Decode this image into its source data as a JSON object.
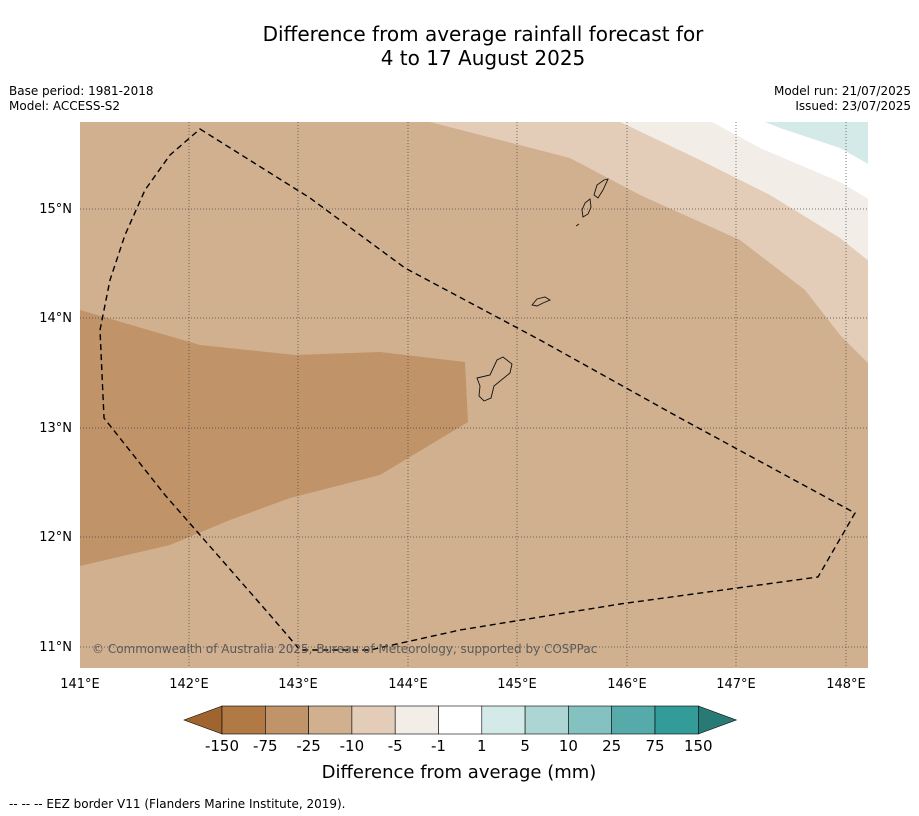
{
  "title": {
    "line1": "Difference from average rainfall forecast for",
    "line2": "4 to 17 August 2025"
  },
  "meta_left": {
    "base_period": "Base period: 1981-2018",
    "model": "Model: ACCESS-S2"
  },
  "meta_right": {
    "model_run": "Model run: 21/07/2025",
    "issued": "Issued: 23/07/2025"
  },
  "map": {
    "lon_labels": [
      "141°E",
      "142°E",
      "143°E",
      "144°E",
      "145°E",
      "146°E",
      "147°E",
      "148°E"
    ],
    "lat_labels": [
      "15°N",
      "14°N",
      "13°N",
      "12°N",
      "11°N"
    ],
    "copyright": "© Commonwealth of Australia 2025, Bureau of Meteorology, supported by COSPPac",
    "extent": {
      "lon": [
        141.0,
        148.2
      ],
      "lat": [
        10.8,
        15.8
      ]
    }
  },
  "colorbar": {
    "labels": [
      "-150",
      "-75",
      "-25",
      "-10",
      "-5",
      "-1",
      "1",
      "5",
      "10",
      "25",
      "75",
      "150"
    ],
    "colors": [
      "#a0652f",
      "#b17a44",
      "#c09368",
      "#d1b090",
      "#e3cdb9",
      "#f2ede7",
      "#ffffff",
      "#d4eae9",
      "#acd5d3",
      "#84c1c1",
      "#56aaaa",
      "#339b98",
      "#287a77"
    ],
    "title": "Difference from average (mm)"
  },
  "legend": {
    "eez": "--  --  -- EEZ border V11 (Flanders Marine Institute, 2019)."
  }
}
